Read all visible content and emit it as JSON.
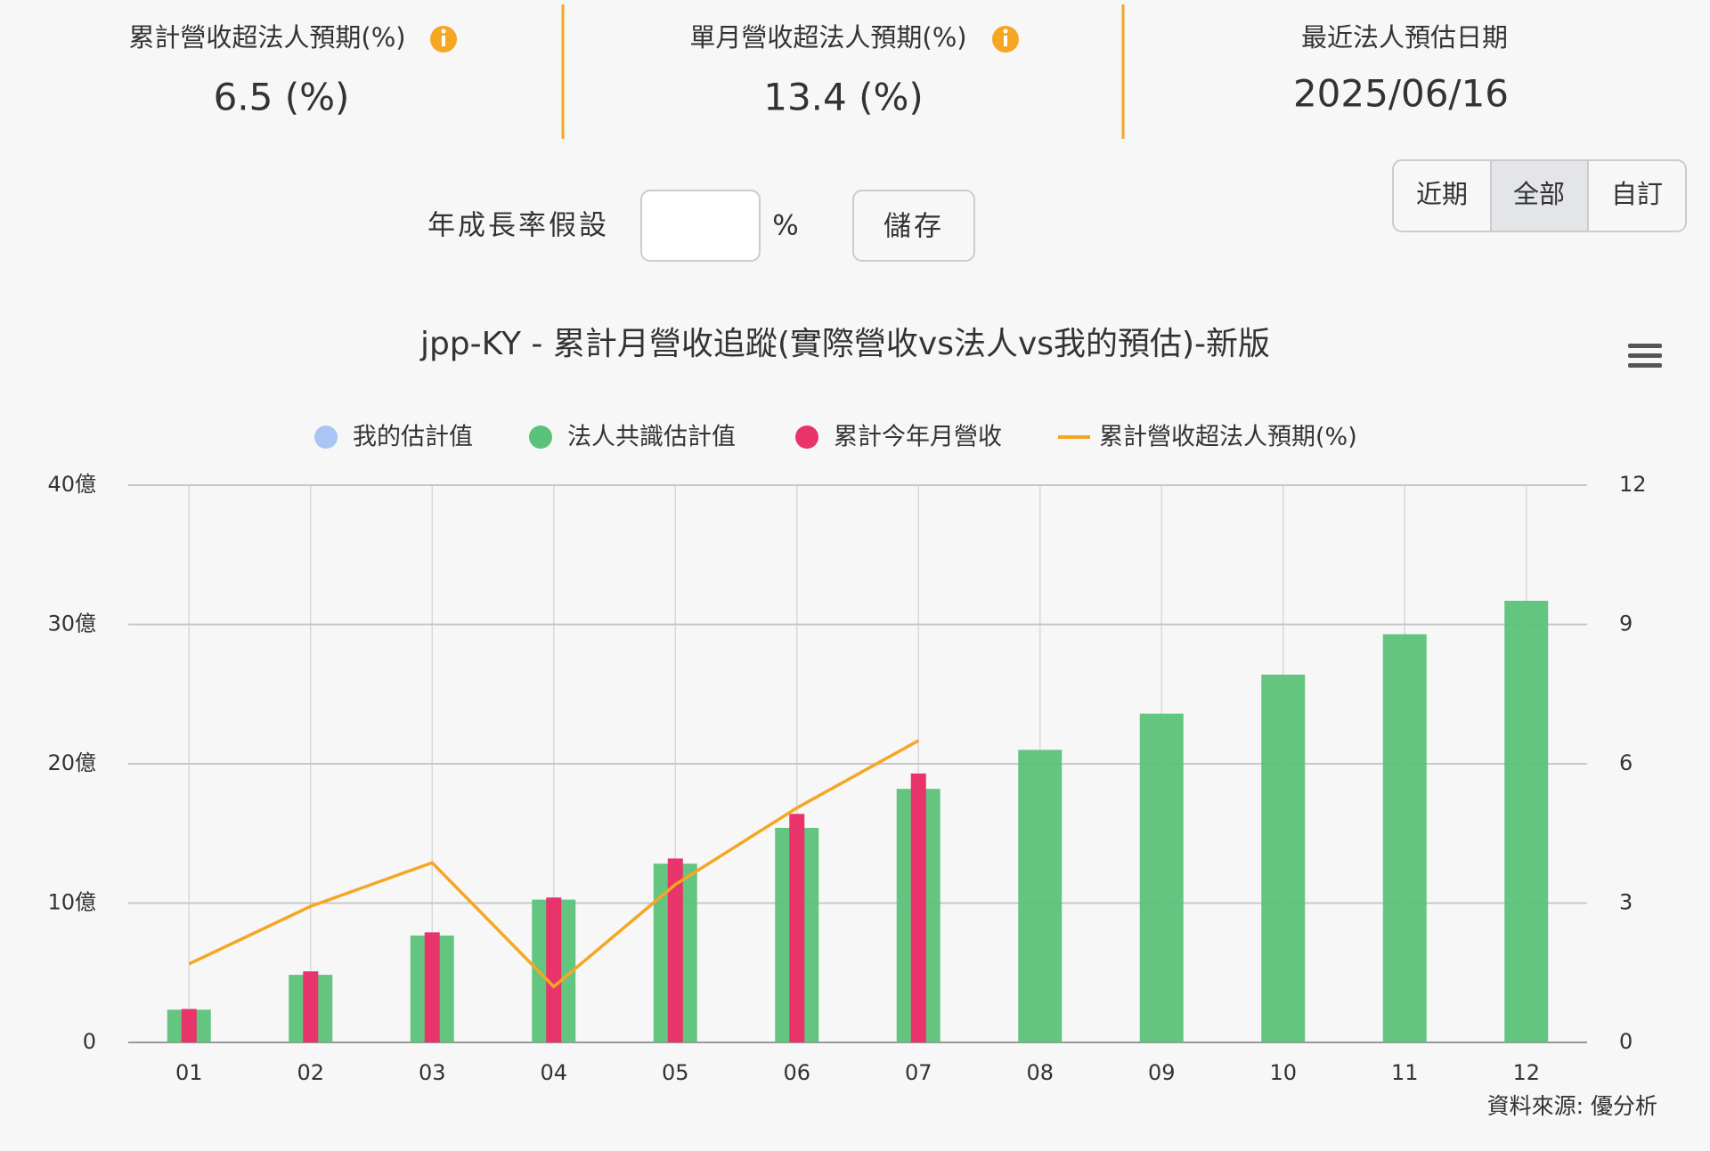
{
  "stats": [
    {
      "label": "累計營收超法人預期(%)",
      "value": "6.5 (%)"
    },
    {
      "label": "單月營收超法人預期(%)",
      "value": "13.4 (%)"
    },
    {
      "label": "最近法人預估日期",
      "value": "2025/06/16"
    }
  ],
  "range_buttons": [
    "近期",
    "全部",
    "自訂"
  ],
  "growth_input": {
    "label": "年成長率假設",
    "unit": "%",
    "button": "儲存"
  },
  "chart_data": {
    "type": "bar",
    "title": "jpp-KY - 累計月營收追蹤(實際營收vs法人vs我的預估)-新版",
    "categories": [
      "01",
      "02",
      "03",
      "04",
      "05",
      "06",
      "07",
      "08",
      "09",
      "10",
      "11",
      "12"
    ],
    "series": [
      {
        "name": "我的估計值",
        "color": "#a9c5f3",
        "values": [
          null,
          null,
          null,
          null,
          null,
          null,
          null,
          null,
          null,
          null,
          null,
          null
        ]
      },
      {
        "name": "法人共識估計值",
        "color": "#5cc27a",
        "values": [
          2.35,
          4.85,
          7.67,
          10.25,
          12.83,
          15.4,
          18.2,
          21.0,
          23.6,
          26.4,
          29.3,
          31.7
        ]
      },
      {
        "name": "累計今年月營收",
        "color": "#e8336b",
        "values": [
          2.4,
          5.1,
          7.9,
          10.4,
          13.2,
          16.4,
          19.3,
          null,
          null,
          null,
          null,
          null
        ]
      },
      {
        "name": "累計營收超法人預期(%)",
        "color": "#f5a623",
        "type": "line",
        "axis": "y2",
        "values": [
          1.69,
          2.93,
          3.87,
          1.2,
          3.4,
          5.05,
          6.5,
          null,
          null,
          null,
          null,
          null
        ]
      }
    ],
    "ylim": [
      0,
      40
    ],
    "yticks": [
      0,
      {
        "value": 10,
        "label": "10億"
      },
      {
        "value": 20,
        "label": "20億"
      },
      {
        "value": 30,
        "label": "30億"
      },
      {
        "value": 40,
        "label": "40億"
      }
    ],
    "y2lim": [
      0,
      12
    ],
    "y2ticks": [
      0,
      3,
      6,
      9,
      12
    ],
    "grid": true,
    "legend": "top",
    "source": "資料來源: 優分析"
  }
}
